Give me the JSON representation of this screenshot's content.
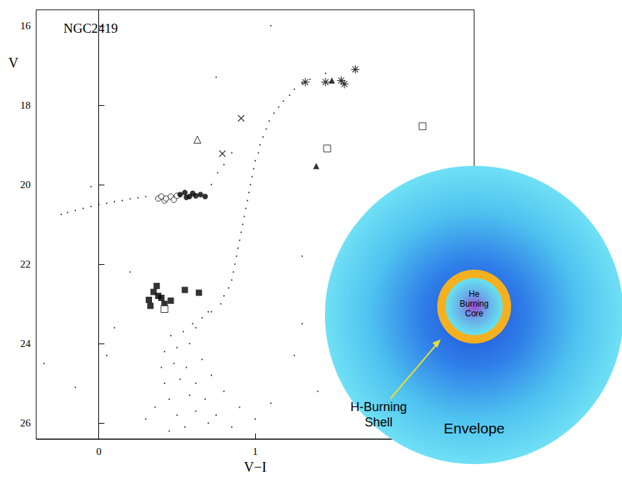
{
  "chart_data": {
    "type": "scatter",
    "title": "NGC2419",
    "x_label": "V−I",
    "y_label": "V",
    "xlim": [
      -0.4,
      2.4
    ],
    "ylim": [
      26.4,
      15.6
    ],
    "xticks": [
      0,
      1
    ],
    "yticks": [
      16,
      18,
      20,
      22,
      24,
      26
    ],
    "grid": false,
    "series": [
      {
        "marker": "dot",
        "color": "#000000",
        "x": [
          0.45,
          0.55,
          0.7,
          0.85,
          0.5,
          0.62,
          0.75,
          0.9,
          0.45,
          0.58,
          0.68,
          0.8,
          0.42,
          0.52,
          0.62,
          0.72,
          0.4,
          0.48,
          0.56,
          0.66,
          0.42,
          0.5,
          0.58,
          0.46,
          0.54,
          0.6,
          0.66,
          0.72,
          0.36,
          0.3,
          1.0,
          1.1,
          -0.35,
          -0.15,
          0.05,
          0.1,
          1.25,
          1.4,
          1.3,
          0.2,
          -0.05,
          1.1,
          0.75,
          1.3,
          0.62,
          0.7,
          0.78,
          0.83,
          0.86,
          0.88,
          0.9,
          0.92,
          0.94,
          0.96,
          0.98,
          1.0,
          1.03,
          1.07,
          1.12,
          1.18,
          1.25,
          1.35,
          1.45,
          0.8,
          0.85,
          0.87,
          0.89,
          0.91,
          0.93,
          0.95,
          0.97,
          0.99,
          1.02,
          1.05,
          1.09,
          1.15,
          1.22,
          1.3,
          0.72,
          0.76,
          0.8,
          0.85,
          -0.24,
          -0.2,
          -0.15,
          -0.1,
          -0.05,
          0.0,
          0.05,
          0.1,
          0.15,
          0.2,
          0.25,
          0.3
        ],
        "values": [
          26.2,
          26.1,
          26.0,
          26.1,
          25.8,
          25.7,
          25.8,
          25.6,
          25.4,
          25.3,
          25.4,
          25.2,
          25.0,
          24.9,
          25.0,
          24.8,
          24.6,
          24.5,
          24.6,
          24.4,
          24.2,
          24.1,
          24.0,
          23.8,
          23.7,
          23.5,
          23.35,
          23.2,
          25.6,
          25.9,
          25.9,
          25.5,
          24.5,
          25.1,
          24.3,
          23.6,
          24.3,
          25.2,
          23.5,
          22.2,
          20.05,
          16.0,
          17.3,
          21.8,
          23.6,
          23.2,
          23.0,
          22.6,
          22.2,
          21.8,
          21.4,
          21.0,
          20.6,
          20.2,
          19.8,
          19.4,
          19.0,
          18.6,
          18.2,
          17.9,
          17.6,
          17.35,
          17.2,
          22.8,
          22.4,
          22.0,
          21.6,
          21.2,
          20.8,
          20.4,
          20.0,
          19.6,
          19.2,
          18.8,
          18.4,
          18.05,
          17.75,
          17.45,
          20.0,
          19.7,
          19.5,
          19.2,
          20.75,
          20.7,
          20.65,
          20.6,
          20.55,
          20.5,
          20.47,
          20.43,
          20.4,
          20.36,
          20.33,
          20.3
        ]
      },
      {
        "marker": "open_circle",
        "color": "#000000",
        "x": [
          0.38,
          0.4,
          0.42,
          0.43,
          0.46,
          0.48,
          0.5
        ],
        "values": [
          20.35,
          20.3,
          20.4,
          20.35,
          20.3,
          20.38,
          20.28
        ]
      },
      {
        "marker": "filled_circle",
        "color": "#000000",
        "x": [
          0.52,
          0.55,
          0.56,
          0.58,
          0.6,
          0.62,
          0.65,
          0.68
        ],
        "values": [
          20.25,
          20.2,
          20.32,
          20.3,
          20.22,
          20.28,
          20.25,
          20.3
        ]
      },
      {
        "marker": "filled_square",
        "color": "#000000",
        "x": [
          0.32,
          0.33,
          0.35,
          0.37,
          0.38,
          0.4,
          0.42,
          0.46,
          0.55,
          0.64
        ],
        "values": [
          22.9,
          23.05,
          22.7,
          22.55,
          22.8,
          22.85,
          23.0,
          22.92,
          22.65,
          22.72
        ]
      },
      {
        "marker": "open_square",
        "color": "#000000",
        "x": [
          0.42,
          1.46,
          2.07
        ],
        "values": [
          23.13,
          19.09,
          18.53
        ]
      },
      {
        "marker": "open_triangle",
        "color": "#000000",
        "x": [
          0.63
        ],
        "values": [
          18.87
        ]
      },
      {
        "marker": "filled_triangle",
        "color": "#000000",
        "x": [
          1.39,
          1.49
        ],
        "values": [
          19.53,
          17.38
        ]
      },
      {
        "marker": "x",
        "color": "#000000",
        "x": [
          0.79,
          0.91
        ],
        "values": [
          19.22,
          18.33
        ]
      },
      {
        "marker": "asterisk",
        "color": "#000000",
        "x": [
          1.32,
          1.45,
          1.55,
          1.57,
          1.64
        ],
        "values": [
          17.42,
          17.42,
          17.38,
          17.47,
          17.1
        ]
      }
    ]
  },
  "diagram": {
    "core_label": [
      "He",
      "Burning",
      "Core"
    ],
    "shell_label": [
      "H-Burning",
      "Shell"
    ],
    "envelope_label": "Envelope"
  }
}
